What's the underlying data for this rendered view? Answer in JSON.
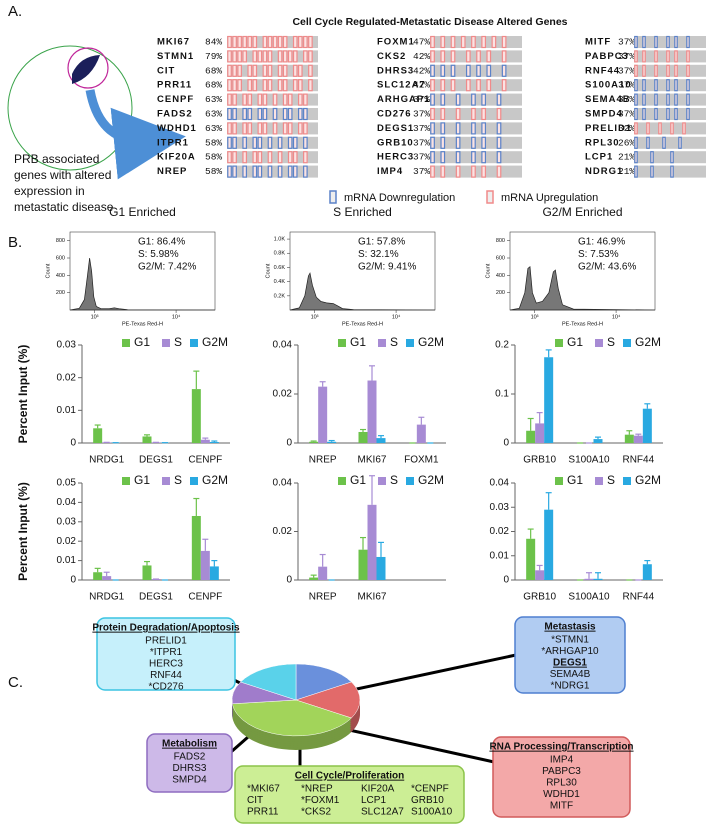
{
  "panel_labels": [
    "A.",
    "B.",
    "C."
  ],
  "panel_a": {
    "title": "Cell Cycle Regulated-Metastatic Disease Altered Genes",
    "caption": [
      "PRB associated",
      "genes with altered",
      "expression in",
      "metastatic disease"
    ],
    "genes": [
      {
        "name": "MKI67",
        "percent": 84,
        "percent_label": "84%",
        "color": "#f08a8a"
      },
      {
        "name": "STMN1",
        "percent": 79,
        "percent_label": "79%",
        "color": "#f08a8a"
      },
      {
        "name": "CIT",
        "percent": 68,
        "percent_label": "68%",
        "color": "#f08a8a"
      },
      {
        "name": "PRR11",
        "percent": 68,
        "percent_label": "68%",
        "color": "#f08a8a"
      },
      {
        "name": "CENPF",
        "percent": 63,
        "percent_label": "63%",
        "color": "#f08a8a"
      },
      {
        "name": "FADS2",
        "percent": 63,
        "percent_label": "63%",
        "color": "#5b82c8"
      },
      {
        "name": "WDHD1",
        "percent": 63,
        "percent_label": "63%",
        "color": "#f08a8a"
      },
      {
        "name": "ITPR1",
        "percent": 58,
        "percent_label": "58%",
        "color": "#5b82c8"
      },
      {
        "name": "KIF20A",
        "percent": 58,
        "percent_label": "58%",
        "color": "#f08a8a"
      },
      {
        "name": "NREP",
        "percent": 58,
        "percent_label": "58%",
        "color": "#5b82c8"
      },
      {
        "name": "FOXM1",
        "percent": 47,
        "percent_label": "47%",
        "color": "#f08a8a"
      },
      {
        "name": "CKS2",
        "percent": 42,
        "percent_label": "42%",
        "color": "#f08a8a"
      },
      {
        "name": "DHRS3",
        "percent": 42,
        "percent_label": "42%",
        "color": "#5b82c8"
      },
      {
        "name": "SLC12A7",
        "percent": 42,
        "percent_label": "42%",
        "color": "#f08a8a"
      },
      {
        "name": "ARHGAP10",
        "percent": 37,
        "percent_label": "37%",
        "color": "#5b82c8"
      },
      {
        "name": "CD276",
        "percent": 37,
        "percent_label": "37%",
        "color": "#f08a8a"
      },
      {
        "name": "DEGS1",
        "percent": 37,
        "percent_label": "37%",
        "color": "#5b82c8"
      },
      {
        "name": "GRB10",
        "percent": 37,
        "percent_label": "37%",
        "color": "#5b82c8"
      },
      {
        "name": "HERC3",
        "percent": 37,
        "percent_label": "37%",
        "color": "#5b82c8"
      },
      {
        "name": "IMP4",
        "percent": 37,
        "percent_label": "37%",
        "color": "#f08a8a"
      },
      {
        "name": "MITF",
        "percent": 37,
        "percent_label": "37%",
        "color": "#5b82c8"
      },
      {
        "name": "PABPC3",
        "percent": 37,
        "percent_label": "37%",
        "color": "#f08a8a"
      },
      {
        "name": "RNF44",
        "percent": 37,
        "percent_label": "37%",
        "color": "#f08a8a"
      },
      {
        "name": "S100A10",
        "percent": 37,
        "percent_label": "37%",
        "color": "#5b82c8"
      },
      {
        "name": "SEMA4B",
        "percent": 37,
        "percent_label": "37%",
        "color": "#5b82c8"
      },
      {
        "name": "SMPD4",
        "percent": 37,
        "percent_label": "37%",
        "color": "#5b82c8"
      },
      {
        "name": "PRELID1",
        "percent": 32,
        "percent_label": "32%",
        "color": "#f08a8a"
      },
      {
        "name": "RPL30",
        "percent": 26,
        "percent_label": "26%",
        "color": "#5b82c8"
      },
      {
        "name": "LCP1",
        "percent": 21,
        "percent_label": "21%",
        "color": "#5b82c8"
      },
      {
        "name": "NDRG1",
        "percent": 21,
        "percent_label": "21%",
        "color": "#5b82c8"
      }
    ],
    "legend": [
      {
        "name": "mRNA Downregulation",
        "color": "#5b82c8"
      },
      {
        "name": "mRNA Upregulation",
        "color": "#f08a8a"
      }
    ]
  },
  "chart_data": [
    {
      "type": "area",
      "title": "G1 Enriched",
      "annotations": [
        "G1: 86.4%",
        "S: 5.98%",
        "G2/M: 7.42%"
      ],
      "xlabel": "PE-Texas Red-H",
      "ylabel": "Count",
      "log_x": true,
      "color": "#777777",
      "x": [
        500,
        650,
        750,
        820,
        870,
        920,
        980,
        1050,
        1200,
        1500,
        1750,
        2000,
        2500,
        4000,
        30000
      ],
      "values": [
        0,
        20,
        120,
        400,
        600,
        450,
        150,
        40,
        15,
        15,
        25,
        15,
        5,
        2,
        0
      ],
      "xlim": [
        500,
        30000
      ],
      "xticks": [
        {
          "value": 1000,
          "label": "10³"
        },
        {
          "value": 10000,
          "label": "10⁴"
        }
      ],
      "ylim": [
        0,
        900
      ],
      "yticks": [
        200,
        400,
        600,
        800
      ]
    },
    {
      "type": "area",
      "title": "S Enriched",
      "annotations": [
        "G1: 57.8%",
        "S: 32.1%",
        "G2/M: 9.41%"
      ],
      "xlabel": "PE-Texas Red-H",
      "ylabel": "Count",
      "log_x": true,
      "color": "#777777",
      "x": [
        500,
        650,
        760,
        840,
        880,
        940,
        1050,
        1200,
        1400,
        1700,
        1900,
        2200,
        3000,
        30000
      ],
      "values": [
        0,
        30,
        200,
        480,
        520,
        350,
        180,
        120,
        100,
        90,
        60,
        20,
        5,
        0
      ],
      "xlim": [
        500,
        30000
      ],
      "xticks": [
        {
          "value": 1000,
          "label": "10³"
        },
        {
          "value": 10000,
          "label": "10⁴"
        }
      ],
      "ylim": [
        0,
        1100
      ],
      "yticks": [
        {
          "value": 200,
          "label": "0.2K"
        },
        {
          "value": 400,
          "label": "0.4K"
        },
        {
          "value": 600,
          "label": "0.6K"
        },
        {
          "value": 800,
          "label": "0.8K"
        },
        {
          "value": 1000,
          "label": "1.0K"
        }
      ]
    },
    {
      "type": "area",
      "title": "G2/M Enriched",
      "annotations": [
        "G1: 46.9%",
        "S: 7.53%",
        "G2/M: 43.6%"
      ],
      "xlabel": "PE-Texas Red-H",
      "ylabel": "Count",
      "log_x": true,
      "color": "#777777",
      "x": [
        500,
        650,
        760,
        830,
        880,
        940,
        1050,
        1250,
        1500,
        1700,
        1800,
        1950,
        2200,
        3000,
        30000
      ],
      "values": [
        0,
        20,
        200,
        480,
        500,
        200,
        80,
        100,
        200,
        440,
        460,
        250,
        60,
        10,
        0
      ],
      "xlim": [
        500,
        30000
      ],
      "xticks": [
        {
          "value": 1000,
          "label": "10³"
        },
        {
          "value": 10000,
          "label": "10⁴"
        }
      ],
      "ylim": [
        0,
        900
      ],
      "yticks": [
        200,
        400,
        600,
        800
      ]
    },
    {
      "type": "bar",
      "ylabel": "Percent Input (%)",
      "categories": [
        "NRDG1",
        "DEGS1",
        "CENPF"
      ],
      "series": [
        {
          "name": "G1",
          "color": "#6cc24a",
          "values": [
            0.0045,
            0.002,
            0.0165
          ],
          "errors": [
            0.001,
            0.0005,
            0.0055
          ]
        },
        {
          "name": "S",
          "color": "#a78bd4",
          "values": [
            0.0002,
            0.0002,
            0.001
          ],
          "errors": [
            0,
            0,
            0.0005
          ]
        },
        {
          "name": "G2M",
          "color": "#29a9e1",
          "values": [
            0.0001,
            0.0001,
            0.0003
          ],
          "errors": [
            0,
            0,
            0.0003
          ]
        }
      ],
      "ylim": [
        0,
        0.03
      ],
      "yticks": [
        0,
        0.01,
        0.02,
        0.03
      ]
    },
    {
      "type": "bar",
      "categories": [
        "NREP",
        "MKI67",
        "FOXM1"
      ],
      "series": [
        {
          "name": "G1",
          "color": "#6cc24a",
          "values": [
            0.0005,
            0.0045,
            0
          ],
          "errors": [
            0.0003,
            0.001,
            0
          ]
        },
        {
          "name": "S",
          "color": "#a78bd4",
          "values": [
            0.023,
            0.0255,
            0.0075
          ],
          "errors": [
            0.002,
            0.006,
            0.003
          ]
        },
        {
          "name": "G2M",
          "color": "#29a9e1",
          "values": [
            0.0005,
            0.002,
            0
          ],
          "errors": [
            0.0005,
            0.001,
            0
          ]
        }
      ],
      "ylim": [
        0,
        0.04
      ],
      "yticks": [
        0,
        0.02,
        0.04
      ]
    },
    {
      "type": "bar",
      "categories": [
        "GRB10",
        "S100A10",
        "RNF44"
      ],
      "series": [
        {
          "name": "G1",
          "color": "#6cc24a",
          "values": [
            0.025,
            0,
            0.017
          ],
          "errors": [
            0.025,
            0,
            0.008
          ]
        },
        {
          "name": "S",
          "color": "#a78bd4",
          "values": [
            0.04,
            0,
            0.015
          ],
          "errors": [
            0.022,
            0,
            0.003
          ]
        },
        {
          "name": "G2M",
          "color": "#29a9e1",
          "values": [
            0.175,
            0.008,
            0.07
          ],
          "errors": [
            0.015,
            0.004,
            0.01
          ]
        }
      ],
      "ylim": [
        0,
        0.2
      ],
      "yticks": [
        0,
        0.1,
        0.2
      ]
    },
    {
      "type": "bar",
      "ylabel": "Percent Input (%)",
      "categories": [
        "NRDG1",
        "DEGS1",
        "CENPF"
      ],
      "series": [
        {
          "name": "G1",
          "color": "#6cc24a",
          "values": [
            0.004,
            0.0075,
            0.033
          ],
          "errors": [
            0.002,
            0.002,
            0.009
          ]
        },
        {
          "name": "S",
          "color": "#a78bd4",
          "values": [
            0.002,
            0.0005,
            0.015
          ],
          "errors": [
            0.002,
            0,
            0.006
          ]
        },
        {
          "name": "G2M",
          "color": "#29a9e1",
          "values": [
            0,
            0,
            0.007
          ],
          "errors": [
            0,
            0,
            0.003
          ]
        }
      ],
      "ylim": [
        0,
        0.05
      ],
      "yticks": [
        0,
        0.01,
        0.02,
        0.03,
        0.04,
        0.05
      ]
    },
    {
      "type": "bar",
      "categories": [
        "NREP",
        "MKI67"
      ],
      "series": [
        {
          "name": "G1",
          "color": "#6cc24a",
          "values": [
            0.001,
            0.0125
          ],
          "errors": [
            0.001,
            0.005
          ]
        },
        {
          "name": "S",
          "color": "#a78bd4",
          "values": [
            0.0055,
            0.031
          ],
          "errors": [
            0.005,
            0.012
          ]
        },
        {
          "name": "G2M",
          "color": "#29a9e1",
          "values": [
            0,
            0.0095
          ],
          "errors": [
            0,
            0.006
          ]
        }
      ],
      "ylim": [
        0,
        0.04
      ],
      "yticks": [
        0,
        0.02,
        0.04
      ]
    },
    {
      "type": "bar",
      "categories": [
        "GRB10",
        "S100A10",
        "RNF44"
      ],
      "series": [
        {
          "name": "G1",
          "color": "#6cc24a",
          "values": [
            0.017,
            0,
            0
          ],
          "errors": [
            0.004,
            0,
            0
          ]
        },
        {
          "name": "S",
          "color": "#a78bd4",
          "values": [
            0.004,
            0.0005,
            0
          ],
          "errors": [
            0.002,
            0.0025,
            0
          ]
        },
        {
          "name": "G2M",
          "color": "#29a9e1",
          "values": [
            0.029,
            0.0005,
            0.0065
          ],
          "errors": [
            0.007,
            0.0025,
            0.0015
          ]
        }
      ],
      "ylim": [
        0,
        0.04
      ],
      "yticks": [
        0,
        0.01,
        0.02,
        0.03,
        0.04
      ]
    },
    {
      "type": "pie",
      "values": [
        5,
        5,
        12,
        3,
        5
      ],
      "colors": [
        "#6a90dc",
        "#e26a6a",
        "#a2d45a",
        "#a07ccb",
        "#5ad2ea"
      ]
    }
  ],
  "panel_c": {
    "groups": [
      {
        "title": "Protein Degradation/Apoptosis",
        "items": [
          "PRELID1",
          "*ITPR1",
          "HERC3",
          "RNF44",
          "*CD276"
        ],
        "columns": 1
      },
      {
        "title": "Metastasis",
        "items": [
          "*STMN1",
          "*ARHGAP10",
          "DEGS1",
          "SEMA4B",
          "*NDRG1"
        ],
        "columns": 1,
        "highlight_index": 2
      },
      {
        "title": "Metabolism",
        "items": [
          "FADS2",
          "DHRS3",
          "SMPD4"
        ],
        "columns": 1
      },
      {
        "title": "Cell Cycle/Proliferation",
        "items": [
          "*MKI67",
          "*NREP",
          "KIF20A",
          "*CENPF",
          "CIT",
          "*FOXM1",
          "LCP1",
          "GRB10",
          "PRR11",
          "*CKS2",
          "SLC12A7",
          "S100A10"
        ],
        "columns": 4
      },
      {
        "title": "RNA Processing/Transcription",
        "items": [
          "IMP4",
          "PABPC3",
          "RPL30",
          "WDHD1",
          "MITF"
        ],
        "columns": 1
      }
    ]
  }
}
